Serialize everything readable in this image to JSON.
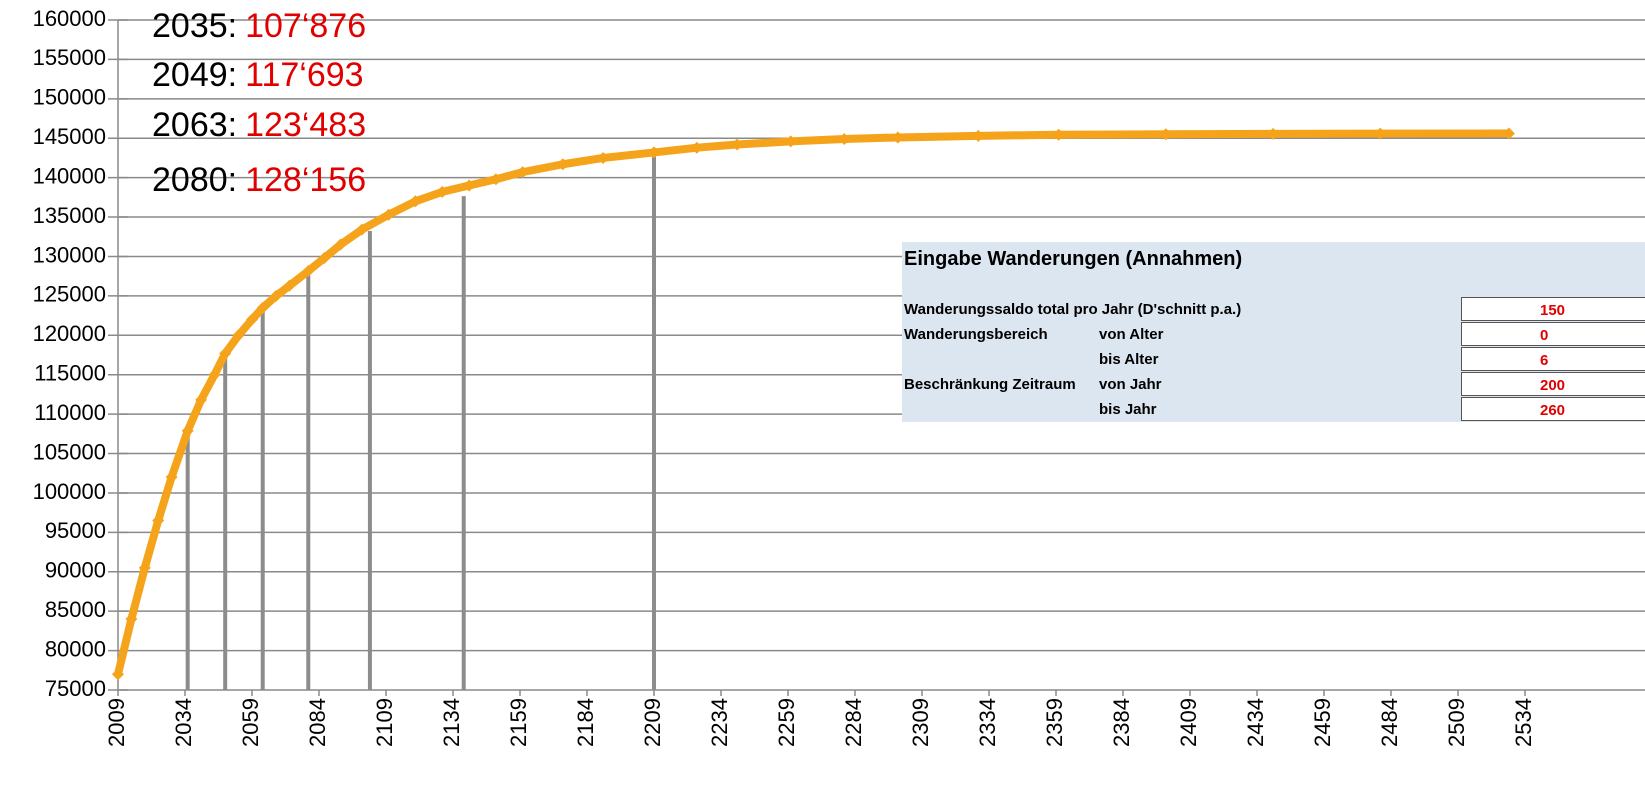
{
  "chart_data": {
    "type": "line",
    "x": [
      2009,
      2014,
      2019,
      2024,
      2029,
      2035,
      2040,
      2045,
      2049,
      2054,
      2059,
      2063,
      2068,
      2073,
      2080,
      2086,
      2092,
      2100,
      2110,
      2120,
      2130,
      2140,
      2150,
      2160,
      2175,
      2190,
      2209,
      2225,
      2240,
      2260,
      2280,
      2300,
      2330,
      2360,
      2400,
      2440,
      2480,
      2528
    ],
    "series": [
      {
        "color": "#f5a31a",
        "values": [
          77000,
          84000,
          90500,
          96500,
          102000,
          107876,
          111800,
          115000,
          117693,
          120000,
          122000,
          123483,
          125000,
          126300,
          128156,
          129800,
          131500,
          133400,
          135300,
          137000,
          138200,
          139000,
          139800,
          140700,
          141700,
          142500,
          143200,
          143800,
          144200,
          144600,
          144900,
          145100,
          145300,
          145450,
          145500,
          145550,
          145580,
          145600
        ]
      }
    ],
    "droplines": {
      "color": "#8c8c8c",
      "x": [
        2035,
        2049,
        2063,
        2080,
        2103,
        2138,
        2209
      ],
      "values": [
        107876,
        117693,
        123483,
        128156,
        133228,
        137658,
        142721
      ]
    },
    "annotations": [
      {
        "year": "2035:",
        "value": "107‘876"
      },
      {
        "year": "2049:",
        "value": "117‘693"
      },
      {
        "year": "2063:",
        "value": "123‘483"
      },
      {
        "year": "2080:",
        "value": "128‘156"
      }
    ],
    "xlim": [
      2009,
      2550
    ],
    "xticks": [
      2009,
      2034,
      2059,
      2084,
      2109,
      2134,
      2159,
      2184,
      2209,
      2234,
      2259,
      2284,
      2309,
      2334,
      2359,
      2384,
      2409,
      2434,
      2459,
      2484,
      2509,
      2534
    ],
    "ylim": [
      75000,
      160000
    ],
    "yticks": [
      75000,
      80000,
      85000,
      90000,
      95000,
      100000,
      105000,
      110000,
      115000,
      120000,
      125000,
      130000,
      135000,
      140000,
      145000,
      150000,
      155000,
      160000
    ],
    "grid": true
  },
  "table": {
    "title": "Eingabe Wanderungen (Annahmen)",
    "rows": [
      {
        "label": "Wanderungssaldo total pro Jahr (D'schnitt p.a.)",
        "value": "150"
      },
      {
        "label": "Wanderungsbereich",
        "sub": "von Alter",
        "value": "0"
      },
      {
        "sub": "bis Alter",
        "value": "6"
      },
      {
        "label": "Beschränkung Zeitraum",
        "sub": "von Jahr",
        "value": "200"
      },
      {
        "sub": "bis Jahr",
        "value": "260"
      }
    ]
  }
}
